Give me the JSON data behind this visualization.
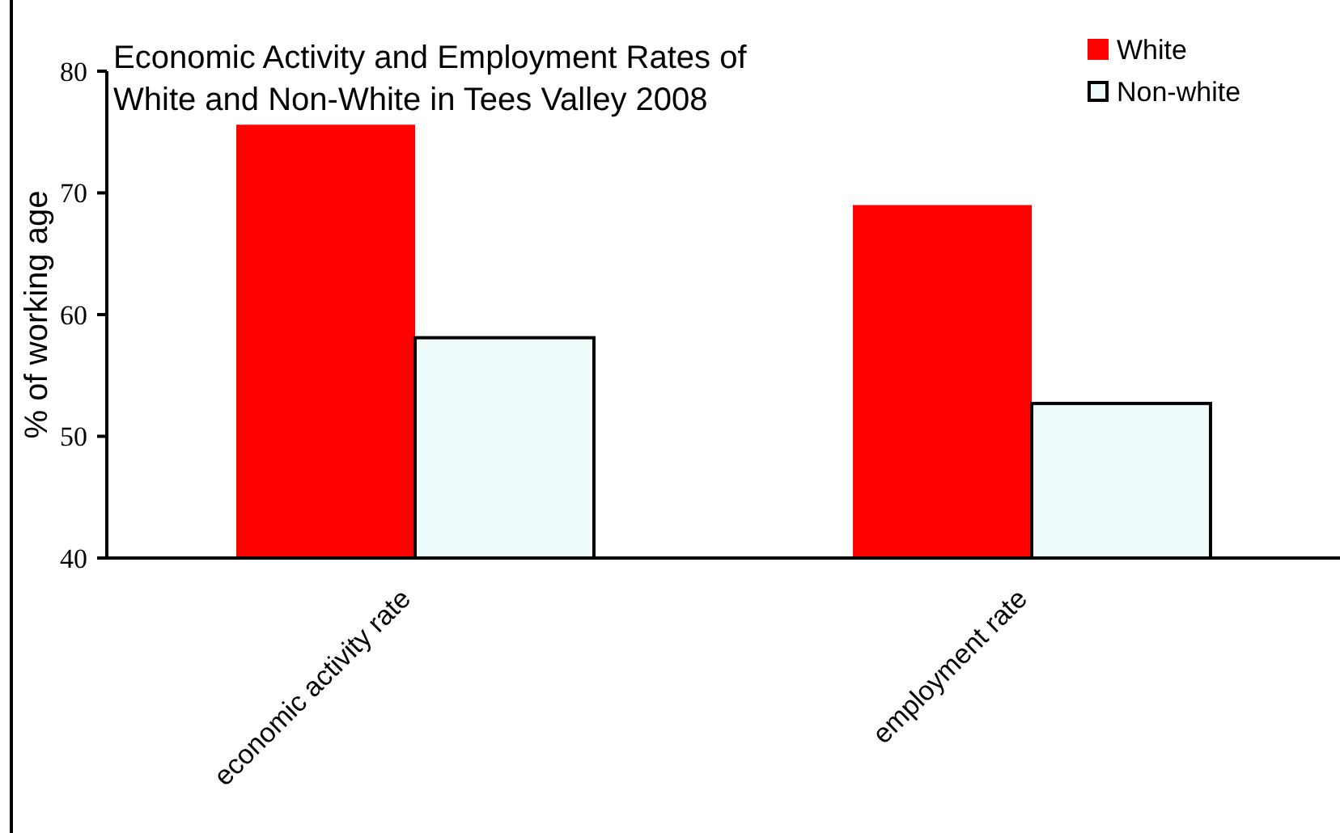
{
  "chart_data": {
    "type": "bar",
    "title": "Economic Activity and Employment Rates of White and Non-White in Tees Valley 2008",
    "ylabel": "% of working age",
    "categories": [
      "economic activity rate",
      "employment rate"
    ],
    "series": [
      {
        "name": "White",
        "color": "#ff0000",
        "values": [
          75.6,
          69.0
        ]
      },
      {
        "name": "Non-white",
        "color": "#f0fcfc",
        "values": [
          58.1,
          52.7
        ]
      }
    ],
    "ylim": [
      40,
      80
    ],
    "yticks": [
      40,
      50,
      60,
      70,
      80
    ],
    "legend": "top right"
  }
}
